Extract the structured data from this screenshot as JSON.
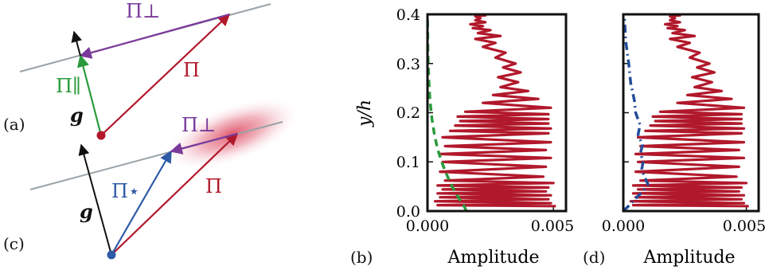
{
  "panels": {
    "a": {
      "label": "(a)",
      "vectors": {
        "pi": "Π",
        "pi_perp": "Π⊥",
        "pi_par": "Π∥",
        "g": "g"
      }
    },
    "c": {
      "label": "(c)",
      "vectors": {
        "pi": "Π",
        "pi_perp": "Π⊥",
        "pi_star": "Π⋆",
        "g": "g"
      }
    },
    "b": {
      "label": "(b)"
    },
    "d": {
      "label": "(d)"
    }
  },
  "colors": {
    "red": "#b1182b",
    "purple": "#7b3a9b",
    "green": "#2a9a3c",
    "blue": "#2e5aa6",
    "gray": "#9aa3a8",
    "black": "#111111",
    "dash_green": "#2a9a3c",
    "dash_blue": "#244d9a"
  },
  "chart_data": [
    {
      "type": "line",
      "panel": "(b)",
      "xlabel": "Amplitude",
      "ylabel": "y/h",
      "xlim": [
        0,
        0.0055
      ],
      "ylim": [
        0,
        0.4
      ],
      "xticks": [
        "0.000",
        "0.005"
      ],
      "yticks": [
        "0.0",
        "0.1",
        "0.2",
        "0.3",
        "0.4"
      ],
      "series": [
        {
          "style": "solid",
          "color": "#b1182b",
          "x": [
            0.0051,
            0.0004,
            0.0049,
            0.0003,
            0.0048,
            0.0005,
            0.0049,
            0.0004,
            0.0047,
            0.0006,
            0.0048,
            0.0004,
            0.005,
            0.0007,
            0.0046,
            0.0005,
            0.0047,
            0.0006,
            0.0049,
            0.0005,
            0.0047,
            0.0007,
            0.0049,
            0.0006,
            0.0048,
            0.0009,
            0.0049,
            0.0011,
            0.0048,
            0.0013,
            0.0048,
            0.0012,
            0.0048,
            0.0015,
            0.0049,
            0.0022,
            0.0044,
            0.0026,
            0.004,
            0.0029,
            0.0036,
            0.0028,
            0.0037,
            0.003,
            0.0035,
            0.0027,
            0.0031,
            0.0022,
            0.0027,
            0.0019,
            0.0029,
            0.002,
            0.0025,
            0.0018,
            0.0022,
            0.0017,
            0.0023,
            0.0019,
            0.0021,
            0.0019,
            0.0023,
            0.002
          ],
          "y": [
            0.01,
            0.012,
            0.016,
            0.02,
            0.024,
            0.028,
            0.032,
            0.036,
            0.04,
            0.044,
            0.048,
            0.052,
            0.057,
            0.062,
            0.07,
            0.08,
            0.09,
            0.1,
            0.108,
            0.116,
            0.124,
            0.132,
            0.14,
            0.15,
            0.158,
            0.163,
            0.168,
            0.174,
            0.178,
            0.183,
            0.187,
            0.192,
            0.197,
            0.202,
            0.21,
            0.22,
            0.228,
            0.236,
            0.244,
            0.252,
            0.262,
            0.272,
            0.282,
            0.292,
            0.3,
            0.312,
            0.322,
            0.334,
            0.342,
            0.35,
            0.356,
            0.362,
            0.368,
            0.372,
            0.376,
            0.38,
            0.384,
            0.388,
            0.392,
            0.396,
            0.398,
            0.4
          ]
        },
        {
          "style": "dashed",
          "color": "#2a9a3c",
          "x": [
            0.00155,
            0.00145,
            0.0013,
            0.00115,
            0.001,
            0.00085,
            0.0007,
            0.00055,
            0.0004,
            0.00028,
            0.00018,
            0.0001,
            5e-05,
            2e-05,
            0.0
          ],
          "y": [
            0.0,
            0.01,
            0.022,
            0.034,
            0.048,
            0.064,
            0.082,
            0.102,
            0.126,
            0.154,
            0.186,
            0.224,
            0.268,
            0.32,
            0.4
          ]
        }
      ]
    },
    {
      "type": "line",
      "panel": "(d)",
      "xlabel": "Amplitude",
      "xlim": [
        0,
        0.0055
      ],
      "ylim": [
        0,
        0.4
      ],
      "xticks": [
        "0.000",
        "0.005"
      ],
      "series": [
        {
          "style": "solid",
          "color": "#b1182b",
          "x": [
            0.0051,
            0.0004,
            0.0049,
            0.0003,
            0.0048,
            0.0005,
            0.0049,
            0.0004,
            0.0047,
            0.0006,
            0.0048,
            0.0004,
            0.005,
            0.0007,
            0.0046,
            0.0005,
            0.0047,
            0.0006,
            0.0049,
            0.0005,
            0.0047,
            0.0007,
            0.0049,
            0.0006,
            0.0048,
            0.0009,
            0.0049,
            0.0011,
            0.0048,
            0.0013,
            0.0048,
            0.0012,
            0.0048,
            0.0015,
            0.0049,
            0.0022,
            0.0044,
            0.0026,
            0.004,
            0.0029,
            0.0036,
            0.0028,
            0.0037,
            0.003,
            0.0035,
            0.0027,
            0.0031,
            0.0022,
            0.0027,
            0.0019,
            0.0029,
            0.002,
            0.0025,
            0.0018,
            0.0022,
            0.0017,
            0.0023,
            0.0019,
            0.0021,
            0.0019,
            0.0023,
            0.002
          ],
          "y": [
            0.01,
            0.012,
            0.016,
            0.02,
            0.024,
            0.028,
            0.032,
            0.036,
            0.04,
            0.044,
            0.048,
            0.052,
            0.057,
            0.062,
            0.07,
            0.08,
            0.09,
            0.1,
            0.108,
            0.116,
            0.124,
            0.132,
            0.14,
            0.15,
            0.158,
            0.163,
            0.168,
            0.174,
            0.178,
            0.183,
            0.187,
            0.192,
            0.197,
            0.202,
            0.21,
            0.22,
            0.228,
            0.236,
            0.244,
            0.252,
            0.262,
            0.272,
            0.282,
            0.292,
            0.3,
            0.312,
            0.322,
            0.334,
            0.342,
            0.35,
            0.356,
            0.362,
            0.368,
            0.372,
            0.376,
            0.38,
            0.384,
            0.388,
            0.392,
            0.396,
            0.398,
            0.4
          ]
        },
        {
          "style": "dashdot",
          "color": "#244d9a",
          "x": [
            0.0,
            0.00025,
            0.0005,
            0.0008,
            0.001,
            0.00085,
            0.00075,
            0.0008,
            0.0007,
            0.00078,
            0.0006,
            0.00068,
            0.0005,
            0.00045,
            0.0003,
            0.00022,
            0.0001,
            4e-05
          ],
          "y": [
            0.0,
            0.012,
            0.026,
            0.04,
            0.055,
            0.07,
            0.085,
            0.1,
            0.118,
            0.135,
            0.155,
            0.175,
            0.2,
            0.225,
            0.26,
            0.3,
            0.345,
            0.4
          ]
        }
      ]
    }
  ]
}
